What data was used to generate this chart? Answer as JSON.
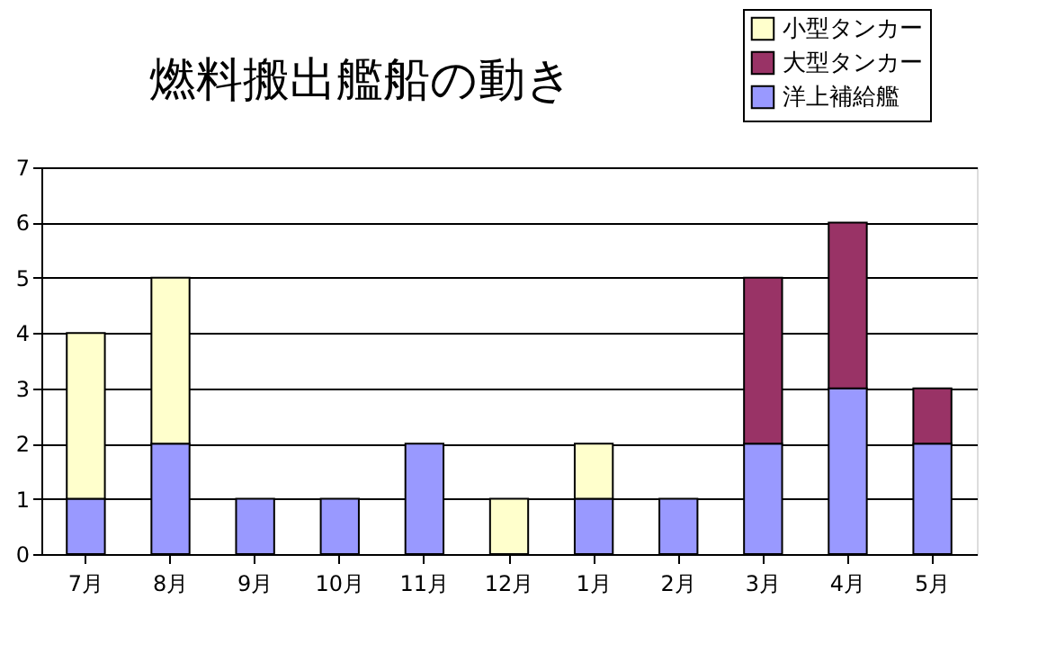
{
  "chart_data": {
    "type": "bar",
    "title": "燃料搬出艦船の動き",
    "stacked": true,
    "categories": [
      "7月",
      "8月",
      "9月",
      "10月",
      "11月",
      "12月",
      "1月",
      "2月",
      "3月",
      "4月",
      "5月"
    ],
    "series": [
      {
        "name": "洋上補給艦",
        "color": "#9999ff",
        "values": [
          1,
          2,
          1,
          1,
          2,
          null,
          1,
          1,
          2,
          3,
          2
        ]
      },
      {
        "name": "大型タンカー",
        "color": "#993366",
        "values": [
          null,
          null,
          null,
          null,
          null,
          null,
          null,
          null,
          3,
          3,
          1
        ]
      },
      {
        "name": "小型タンカー",
        "color": "#ffffcc",
        "values": [
          3,
          3,
          null,
          null,
          null,
          1,
          1,
          null,
          null,
          null,
          null
        ]
      }
    ],
    "ylim": [
      0,
      7
    ],
    "yticks": [
      0,
      1,
      2,
      3,
      4,
      5,
      6,
      7
    ],
    "grid": "y",
    "legend": "top right"
  }
}
